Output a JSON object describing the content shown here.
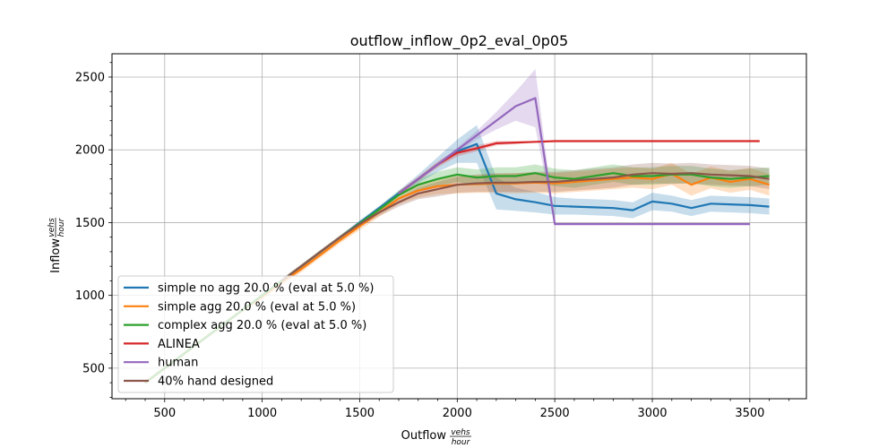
{
  "chart_data": {
    "type": "line",
    "title": "outflow_inflow_0p2_eval_0p05",
    "xlabel": "Outflow",
    "ylabel": "Inflow",
    "unit_numerator": "vehs",
    "unit_denominator": "hour",
    "xlim": [
      230,
      3790
    ],
    "ylim": [
      290,
      2660
    ],
    "x_ticks": [
      500,
      1000,
      1500,
      2000,
      2500,
      3000,
      3500
    ],
    "y_ticks": [
      500,
      1000,
      1500,
      2000,
      2500
    ],
    "grid": true,
    "legend_position": "lower-left",
    "series": [
      {
        "name": "simple no agg 20.0 % (eval at 5.0 %)",
        "color": "#1f77b4",
        "x": [
          400,
          500,
          600,
          700,
          800,
          900,
          1000,
          1100,
          1200,
          1300,
          1400,
          1500,
          1600,
          1700,
          1800,
          1900,
          2000,
          2100,
          2200,
          2300,
          2400,
          2500,
          2600,
          2700,
          2800,
          2900,
          3000,
          3100,
          3200,
          3300,
          3400,
          3500,
          3600
        ],
        "y": [
          400,
          500,
          600,
          700,
          800,
          900,
          1000,
          1100,
          1200,
          1300,
          1400,
          1500,
          1600,
          1700,
          1800,
          1900,
          1990,
          2040,
          1700,
          1660,
          1640,
          1615,
          1610,
          1605,
          1600,
          1585,
          1645,
          1630,
          1600,
          1630,
          1625,
          1620,
          1610
        ],
        "band": [
          10,
          10,
          10,
          10,
          10,
          10,
          10,
          10,
          10,
          10,
          10,
          15,
          15,
          20,
          30,
          50,
          80,
          130,
          110,
          80,
          70,
          60,
          55,
          55,
          55,
          55,
          60,
          55,
          55,
          55,
          55,
          55,
          55
        ]
      },
      {
        "name": "simple agg 20.0 % (eval at 5.0 %)",
        "color": "#ff7f0e",
        "x": [
          400,
          500,
          600,
          700,
          800,
          900,
          1000,
          1100,
          1200,
          1300,
          1400,
          1500,
          1600,
          1700,
          1800,
          1900,
          2000,
          2100,
          2200,
          2300,
          2400,
          2500,
          2600,
          2700,
          2800,
          2900,
          3000,
          3100,
          3200,
          3300,
          3400,
          3500,
          3600
        ],
        "y": [
          400,
          500,
          600,
          700,
          800,
          900,
          990,
          1090,
          1180,
          1280,
          1380,
          1475,
          1570,
          1665,
          1720,
          1750,
          1760,
          1765,
          1770,
          1770,
          1775,
          1770,
          1780,
          1790,
          1800,
          1810,
          1800,
          1835,
          1760,
          1810,
          1780,
          1800,
          1760
        ],
        "band": [
          15,
          15,
          15,
          15,
          15,
          15,
          20,
          20,
          20,
          20,
          20,
          25,
          30,
          40,
          50,
          55,
          60,
          60,
          65,
          70,
          70,
          70,
          70,
          70,
          70,
          70,
          70,
          75,
          75,
          75,
          75,
          75,
          75
        ]
      },
      {
        "name": "complex agg 20.0 % (eval at 5.0 %)",
        "color": "#2ca02c",
        "x": [
          400,
          500,
          600,
          700,
          800,
          900,
          1000,
          1100,
          1200,
          1300,
          1400,
          1500,
          1600,
          1700,
          1800,
          1900,
          2000,
          2100,
          2200,
          2300,
          2400,
          2500,
          2600,
          2700,
          2800,
          2900,
          3000,
          3100,
          3200,
          3300,
          3400,
          3500,
          3600
        ],
        "y": [
          400,
          500,
          600,
          700,
          800,
          900,
          1000,
          1100,
          1200,
          1300,
          1400,
          1495,
          1590,
          1690,
          1760,
          1800,
          1830,
          1810,
          1820,
          1820,
          1840,
          1810,
          1800,
          1820,
          1840,
          1820,
          1820,
          1830,
          1830,
          1810,
          1800,
          1810,
          1820
        ],
        "band": [
          10,
          10,
          10,
          10,
          10,
          10,
          10,
          10,
          10,
          10,
          10,
          15,
          20,
          30,
          40,
          50,
          50,
          55,
          60,
          60,
          60,
          60,
          60,
          60,
          60,
          60,
          60,
          60,
          60,
          60,
          60,
          60,
          60
        ]
      },
      {
        "name": "ALINEA",
        "color": "#d62728",
        "x": [
          1700,
          1800,
          1900,
          2000,
          2100,
          2200,
          2300,
          2400,
          2500,
          2600,
          2700,
          2800,
          2900,
          3000,
          3100,
          3200,
          3300,
          3400,
          3500,
          3550
        ],
        "y": [
          1700,
          1800,
          1900,
          1980,
          2010,
          2045,
          2050,
          2055,
          2060,
          2060,
          2060,
          2060,
          2060,
          2060,
          2060,
          2060,
          2060,
          2060,
          2060,
          2060
        ],
        "band": [
          15,
          15,
          20,
          25,
          20,
          15,
          10,
          5,
          5,
          5,
          5,
          5,
          5,
          5,
          5,
          5,
          5,
          5,
          5,
          5
        ]
      },
      {
        "name": "human",
        "color": "#9467bd",
        "x": [
          1700,
          1800,
          1900,
          2000,
          2100,
          2200,
          2300,
          2400,
          2500,
          2600,
          2700,
          2800,
          2900,
          3000,
          3100,
          3200,
          3300,
          3400,
          3500
        ],
        "y": [
          1700,
          1800,
          1900,
          2000,
          2100,
          2200,
          2300,
          2355,
          1490,
          1490,
          1490,
          1490,
          1490,
          1490,
          1490,
          1490,
          1490,
          1490,
          1490
        ],
        "band": [
          10,
          10,
          10,
          15,
          30,
          60,
          100,
          200,
          5,
          5,
          5,
          5,
          5,
          5,
          5,
          5,
          5,
          5,
          5
        ]
      },
      {
        "name": "40% hand designed",
        "color": "#8c564b",
        "x": [
          1100,
          1200,
          1300,
          1400,
          1500,
          1600,
          1700,
          1800,
          1900,
          2000,
          2100,
          2200,
          2300,
          2400,
          2500,
          2600,
          2700,
          2800,
          2900,
          3000,
          3100,
          3200,
          3300,
          3400,
          3500,
          3600
        ],
        "y": [
          1100,
          1200,
          1300,
          1400,
          1490,
          1570,
          1640,
          1700,
          1730,
          1760,
          1770,
          1775,
          1775,
          1780,
          1780,
          1790,
          1800,
          1810,
          1830,
          1840,
          1835,
          1840,
          1830,
          1825,
          1820,
          1800
        ],
        "band": [
          15,
          15,
          15,
          15,
          20,
          25,
          30,
          40,
          50,
          55,
          60,
          65,
          65,
          70,
          70,
          70,
          70,
          70,
          70,
          70,
          70,
          70,
          70,
          70,
          70,
          70
        ]
      }
    ]
  }
}
